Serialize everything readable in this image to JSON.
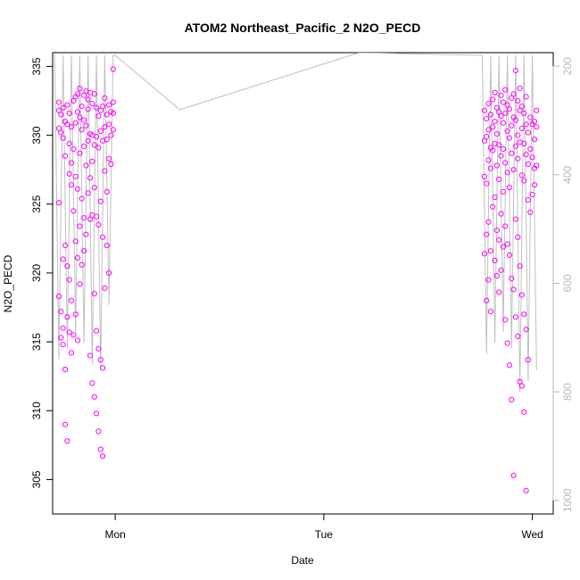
{
  "chart_data": {
    "type": "scatter",
    "title": "ATOM2 Northeast_Pacific_2 N2O_PECD",
    "xlabel": "Date",
    "ylabel": "N2O_PECD",
    "x_ticks": [
      "Mon",
      "Tue",
      "Wed"
    ],
    "ylim": [
      302.5,
      336
    ],
    "y_ticks": [
      305,
      310,
      315,
      320,
      325,
      330,
      335
    ],
    "y2lim": [
      1025,
      175
    ],
    "y2_ticks": [
      200,
      400,
      600,
      800,
      1000
    ],
    "grid": false,
    "colors": {
      "points": "#ff00ff",
      "profile": "#c0c0c0"
    },
    "series": [
      {
        "axis": "left",
        "mark": "circle",
        "clusters": [
          {
            "x": [
              -0.27,
              -0.26,
              -0.25,
              -0.24,
              -0.23,
              -0.22,
              -0.21,
              -0.2,
              -0.19,
              -0.18,
              -0.17,
              -0.16,
              -0.15,
              -0.14,
              -0.13,
              -0.12,
              -0.11,
              -0.1,
              -0.09,
              -0.08,
              -0.07,
              -0.06,
              -0.05,
              -0.04,
              -0.03,
              -0.02,
              -0.01
            ],
            "y": [
              [
                332.4,
                331.8,
                330.5,
                325.1,
                318.3
              ],
              [
                331.5,
                330.2,
                317.2,
                315.3
              ],
              [
                332.0,
                329.8,
                321.0,
                316.0,
                314.8
              ],
              [
                331.0,
                328.5,
                322.0,
                313.0,
                309.0
              ],
              [
                332.2,
                330.8,
                320.5,
                316.8,
                307.8
              ],
              [
                331.6,
                329.4,
                327.2,
                319.5,
                315.7
              ],
              [
                330.6,
                328.0,
                326.4,
                318.0,
                314.2
              ],
              [
                332.5,
                329.0,
                324.5,
                315.5
              ],
              [
                332.8,
                330.9,
                327.0,
                322.3,
                317.0
              ],
              [
                333.0,
                331.7,
                326.1,
                321.1,
                315.1
              ],
              [
                333.4,
                331.3,
                328.7,
                323.4,
                319.2
              ],
              [
                332.1,
                330.4,
                325.4,
                320.6
              ],
              [
                332.9,
                331.1,
                329.2,
                324.0,
                321.6
              ],
              [
                333.2,
                330.7,
                327.8,
                322.8
              ],
              [
                332.6,
                331.9,
                329.6,
                325.8
              ],
              [
                333.1,
                330.1,
                326.9,
                323.9,
                314.0
              ],
              [
                332.3,
                330.0,
                328.1,
                324.2,
                312.0
              ],
              [
                333.0,
                329.3,
                326.2,
                318.5,
                311.0
              ],
              [
                332.0,
                329.9,
                324.1,
                315.8,
                309.8
              ],
              [
                331.4,
                329.1,
                323.5,
                314.5,
                308.5
              ],
              [
                331.8,
                330.3,
                325.2,
                313.7,
                307.2
              ],
              [
                332.1,
                329.6,
                322.6,
                313.1,
                306.7
              ],
              [
                332.7,
                330.6,
                327.4,
                318.9
              ],
              [
                331.5,
                329.7,
                325.9,
                322.0
              ],
              [
                332.2,
                330.8,
                328.3,
                320.0
              ],
              [
                331.7,
                330.0,
                327.9
              ],
              [
                334.8,
                332.4,
                331.6,
                330.4
              ]
            ]
          },
          {
            "x": [
              1.77,
              1.78,
              1.79,
              1.8,
              1.81,
              1.82,
              1.83,
              1.84,
              1.85,
              1.86,
              1.87,
              1.88,
              1.89,
              1.9,
              1.91,
              1.92,
              1.93,
              1.94,
              1.95,
              1.96,
              1.97,
              1.98,
              1.99,
              2.0,
              2.01,
              2.02
            ],
            "y": [
              [
                331.8,
                329.6,
                327.0,
                321.4
              ],
              [
                331.2,
                329.9,
                326.5,
                322.8,
                318.0
              ],
              [
                332.3,
                330.4,
                328.2,
                323.7,
                319.5
              ],
              [
                331.5,
                329.1,
                327.6,
                321.6,
                317.2
              ],
              [
                332.6,
                330.6,
                328.9,
                324.8
              ],
              [
                333.1,
                331.0,
                329.4,
                325.5,
                320.9
              ],
              [
                332.0,
                330.1,
                327.8,
                323.1,
                319.8
              ],
              [
                331.7,
                329.3,
                326.8,
                322.4,
                318.6
              ],
              [
                332.9,
                331.4,
                328.5,
                324.3,
                320.2
              ],
              [
                332.4,
                330.9,
                329.0,
                325.9,
                321.9
              ],
              [
                333.3,
                331.6,
                328.0,
                323.4,
                316.6
              ],
              [
                332.2,
                330.3,
                327.3,
                322.1,
                314.9
              ],
              [
                331.9,
                329.8,
                326.2,
                321.3,
                313.3
              ],
              [
                332.7,
                330.7,
                328.7,
                319.6,
                310.8
              ],
              [
                333.0,
                331.3,
                327.5,
                318.8,
                305.3
              ],
              [
                334.7,
                331.1,
                329.2,
                323.9,
                316.8
              ],
              [
                332.5,
                330.0,
                328.3,
                322.6,
                315.4
              ],
              [
                333.4,
                331.8,
                329.5,
                320.5,
                312.1
              ],
              [
                332.1,
                330.5,
                327.1,
                318.4,
                311.8
              ],
              [
                331.6,
                329.4,
                326.7,
                317.0,
                309.9
              ],
              [
                332.8,
                330.8,
                328.6,
                315.9,
                304.2
              ],
              [
                330.2,
                327.9,
                325.3,
                313.7
              ],
              [
                331.3,
                329.0,
                324.4
              ],
              [
                330.8,
                328.4,
                325.7
              ],
              [
                331.0,
                329.7,
                327.6,
                326.4
              ],
              [
                331.8,
                330.6,
                327.8
              ]
            ]
          }
        ]
      },
      {
        "axis": "right",
        "mark": "line",
        "x": [
          -0.29,
          -0.27,
          -0.25,
          -0.23,
          -0.21,
          -0.19,
          -0.17,
          -0.15,
          -0.13,
          -0.11,
          -0.09,
          -0.07,
          -0.05,
          -0.03,
          -0.01,
          0.0,
          0.31,
          1.17,
          1.76,
          1.78,
          1.8,
          1.82,
          1.84,
          1.86,
          1.88,
          1.9,
          1.92,
          1.94,
          1.96,
          1.98,
          2.0,
          2.02
        ],
        "y": [
          180,
          740,
          180,
          720,
          180,
          690,
          180,
          710,
          180,
          750,
          180,
          760,
          180,
          640,
          180,
          180,
          280,
          175,
          180,
          730,
          180,
          710,
          180,
          690,
          180,
          720,
          180,
          800,
          180,
          780,
          180,
          760
        ]
      }
    ]
  }
}
